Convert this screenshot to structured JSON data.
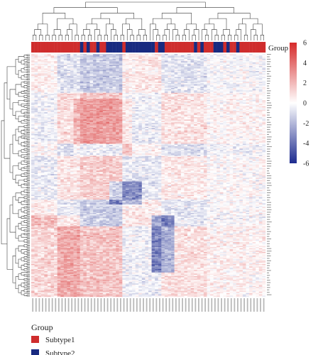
{
  "chart_data": {
    "type": "heatmap",
    "title": "",
    "annotation": {
      "label": "Group",
      "legend_title": "Group",
      "groups": [
        {
          "name": "Subtype1",
          "color": "#cf2d2d"
        },
        {
          "name": "Subtype2",
          "color": "#182a80"
        }
      ],
      "sample_groups": [
        1,
        1,
        1,
        1,
        1,
        1,
        1,
        1,
        1,
        1,
        1,
        1,
        1,
        1,
        1,
        2,
        1,
        2,
        1,
        1,
        2,
        1,
        1,
        2,
        2,
        2,
        2,
        2,
        1,
        2,
        2,
        2,
        2,
        2,
        2,
        2,
        2,
        2,
        1,
        2,
        2,
        1,
        1,
        1,
        1,
        1,
        1,
        1,
        1,
        1,
        2,
        1,
        2,
        1,
        1,
        1,
        2,
        2,
        2,
        1,
        2,
        1,
        1,
        2,
        1,
        1,
        1,
        1,
        1,
        1,
        1,
        1
      ]
    },
    "colorbar": {
      "range": [
        -6,
        6
      ],
      "ticks": [
        6,
        4,
        2,
        0,
        -2,
        -4,
        -6
      ],
      "low_color": "#1d2b8f",
      "mid_color": "#ffffff",
      "high_color": "#d62a2a"
    },
    "n_samples": 72,
    "n_genes": 200,
    "dendrograms": {
      "rows": true,
      "columns": true
    },
    "sample_labels": "not legible",
    "gene_labels": "not legible"
  }
}
